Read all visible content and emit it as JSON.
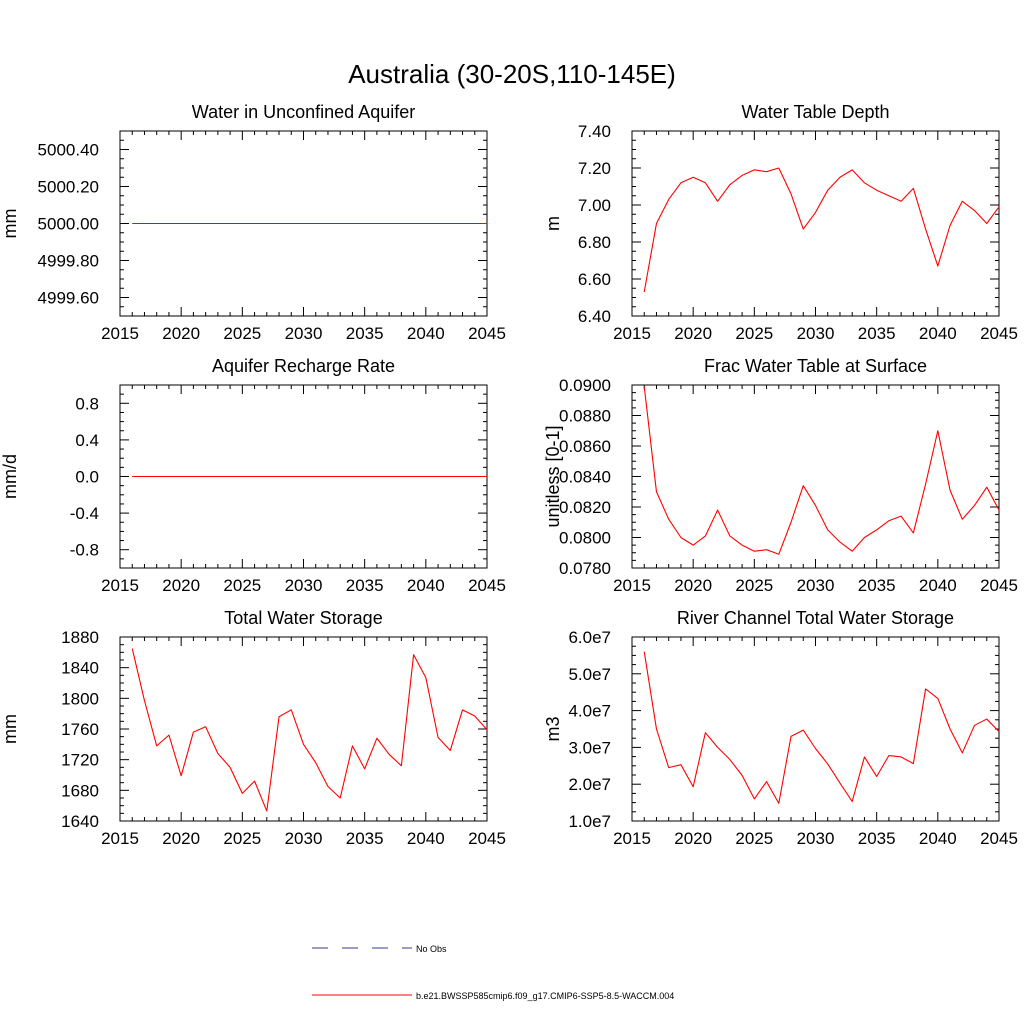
{
  "figure": {
    "title": "Australia (30-20S,110-145E)"
  },
  "legend": {
    "entries": [
      {
        "label": "No Obs",
        "color": "#3a3a8c",
        "style": "dashed"
      },
      {
        "label": "b.e21.BWSSP585cmip6.f09_g17.CMIP6-SSP5-8.5-WACCM.004",
        "color": "#ff0000",
        "style": "solid"
      }
    ]
  },
  "chart_data": [
    {
      "type": "line",
      "title": "Water in Unconfined Aquifer",
      "ylabel": "mm",
      "xlim": [
        2015,
        2045
      ],
      "ylim": [
        4999.5,
        5000.5
      ],
      "xticks": [
        2015,
        2020,
        2025,
        2030,
        2035,
        2040,
        2045
      ],
      "yticks": [
        4999.6,
        4999.8,
        5000.0,
        5000.2,
        5000.4
      ],
      "ytick_labels": [
        "4999.60",
        "4999.80",
        "5000.00",
        "5000.20",
        "5000.40"
      ],
      "grid": false,
      "series": [
        {
          "color": "#ff0000",
          "x": [
            2016,
            2045
          ],
          "y": [
            5000.0,
            5000.0
          ]
        }
      ]
    },
    {
      "type": "line",
      "title": "Water Table Depth",
      "ylabel": "m",
      "xlim": [
        2015,
        2045
      ],
      "ylim": [
        6.4,
        7.4
      ],
      "xticks": [
        2015,
        2020,
        2025,
        2030,
        2035,
        2040,
        2045
      ],
      "yticks": [
        6.4,
        6.6,
        6.8,
        7.0,
        7.2,
        7.4
      ],
      "ytick_labels": [
        "6.40",
        "6.60",
        "6.80",
        "7.00",
        "7.20",
        "7.40"
      ],
      "grid": false,
      "series": [
        {
          "color": "#ff0000",
          "x": [
            2016,
            2017,
            2018,
            2019,
            2020,
            2021,
            2022,
            2023,
            2024,
            2025,
            2026,
            2027,
            2028,
            2029,
            2030,
            2031,
            2032,
            2033,
            2034,
            2035,
            2036,
            2037,
            2038,
            2039,
            2040,
            2041,
            2042,
            2043,
            2044,
            2045
          ],
          "y": [
            6.53,
            6.9,
            7.03,
            7.12,
            7.15,
            7.12,
            7.02,
            7.11,
            7.16,
            7.19,
            7.18,
            7.2,
            7.06,
            6.87,
            6.96,
            7.08,
            7.15,
            7.19,
            7.12,
            7.08,
            7.05,
            7.02,
            7.09,
            6.87,
            6.67,
            6.89,
            7.02,
            6.97,
            6.9,
            6.99
          ]
        }
      ]
    },
    {
      "type": "line",
      "title": "Aquifer Recharge Rate",
      "ylabel": "mm/d",
      "xlim": [
        2015,
        2045
      ],
      "ylim": [
        -1.0,
        1.0
      ],
      "xticks": [
        2015,
        2020,
        2025,
        2030,
        2035,
        2040,
        2045
      ],
      "yticks": [
        -0.8,
        -0.4,
        0.0,
        0.4,
        0.8
      ],
      "ytick_labels": [
        "-0.8",
        "-0.4",
        "0.0",
        "0.4",
        "0.8"
      ],
      "grid": false,
      "series": [
        {
          "color": "#ff0000",
          "x": [
            2016,
            2045
          ],
          "y": [
            0.0,
            0.0
          ]
        }
      ]
    },
    {
      "type": "line",
      "title": "Frac Water Table at Surface",
      "ylabel": "unitless [0-1]",
      "xlim": [
        2015,
        2045
      ],
      "ylim": [
        0.078,
        0.09
      ],
      "xticks": [
        2015,
        2020,
        2025,
        2030,
        2035,
        2040,
        2045
      ],
      "yticks": [
        0.078,
        0.08,
        0.082,
        0.084,
        0.086,
        0.088,
        0.09
      ],
      "ytick_labels": [
        "0.0780",
        "0.0800",
        "0.0820",
        "0.0840",
        "0.0860",
        "0.0880",
        "0.0900"
      ],
      "grid": false,
      "series": [
        {
          "color": "#ff0000",
          "x": [
            2016,
            2017,
            2018,
            2019,
            2020,
            2021,
            2022,
            2023,
            2024,
            2025,
            2026,
            2027,
            2028,
            2029,
            2030,
            2031,
            2032,
            2033,
            2034,
            2035,
            2036,
            2037,
            2038,
            2039,
            2040,
            2041,
            2042,
            2043,
            2044,
            2045
          ],
          "y": [
            0.0899,
            0.083,
            0.0812,
            0.08,
            0.0795,
            0.0801,
            0.0818,
            0.0801,
            0.0795,
            0.0791,
            0.0792,
            0.0789,
            0.081,
            0.0834,
            0.0821,
            0.0805,
            0.0797,
            0.0791,
            0.08,
            0.0805,
            0.0811,
            0.0814,
            0.0803,
            0.0835,
            0.087,
            0.0831,
            0.0812,
            0.0821,
            0.0833,
            0.0818
          ]
        }
      ]
    },
    {
      "type": "line",
      "title": "Total Water Storage",
      "ylabel": "mm",
      "xlim": [
        2015,
        2045
      ],
      "ylim": [
        1640,
        1880
      ],
      "xticks": [
        2015,
        2020,
        2025,
        2030,
        2035,
        2040,
        2045
      ],
      "yticks": [
        1640,
        1680,
        1720,
        1760,
        1800,
        1840,
        1880
      ],
      "ytick_labels": [
        "1640",
        "1680",
        "1720",
        "1760",
        "1800",
        "1840",
        "1880"
      ],
      "grid": false,
      "series": [
        {
          "color": "#ff0000",
          "x": [
            2016,
            2017,
            2018,
            2019,
            2020,
            2021,
            2022,
            2023,
            2024,
            2025,
            2026,
            2027,
            2028,
            2029,
            2030,
            2031,
            2032,
            2033,
            2034,
            2035,
            2036,
            2037,
            2038,
            2039,
            2040,
            2041,
            2042,
            2043,
            2044,
            2045
          ],
          "y": [
            1865,
            1797,
            1738,
            1752,
            1699,
            1756,
            1763,
            1728,
            1710,
            1676,
            1692,
            1653,
            1776,
            1785,
            1740,
            1716,
            1685,
            1670,
            1738,
            1708,
            1748,
            1727,
            1712,
            1857,
            1827,
            1749,
            1732,
            1785,
            1777,
            1759
          ]
        }
      ]
    },
    {
      "type": "line",
      "title": "River Channel Total Water Storage",
      "ylabel": "m3",
      "xlim": [
        2015,
        2045
      ],
      "ylim": [
        10000000,
        60000000
      ],
      "xticks": [
        2015,
        2020,
        2025,
        2030,
        2035,
        2040,
        2045
      ],
      "yticks": [
        10000000,
        20000000,
        30000000,
        40000000,
        50000000,
        60000000
      ],
      "ytick_labels": [
        "1.0e7",
        "2.0e7",
        "3.0e7",
        "4.0e7",
        "5.0e7",
        "6.0e7"
      ],
      "grid": false,
      "series": [
        {
          "color": "#ff0000",
          "x": [
            2016,
            2017,
            2018,
            2019,
            2020,
            2021,
            2022,
            2023,
            2024,
            2025,
            2026,
            2027,
            2028,
            2029,
            2030,
            2031,
            2032,
            2033,
            2034,
            2035,
            2036,
            2037,
            2038,
            2039,
            2040,
            2041,
            2042,
            2043,
            2044,
            2045
          ],
          "y": [
            56000000,
            35000000,
            24500000,
            25300000,
            19300000,
            34000000,
            30000000,
            26700000,
            22400000,
            16000000,
            20700000,
            14800000,
            33000000,
            34700000,
            29700000,
            25500000,
            20300000,
            15300000,
            27400000,
            22100000,
            27800000,
            27400000,
            25600000,
            45900000,
            43300000,
            35000000,
            28500000,
            36000000,
            37700000,
            34300000
          ]
        }
      ]
    }
  ]
}
